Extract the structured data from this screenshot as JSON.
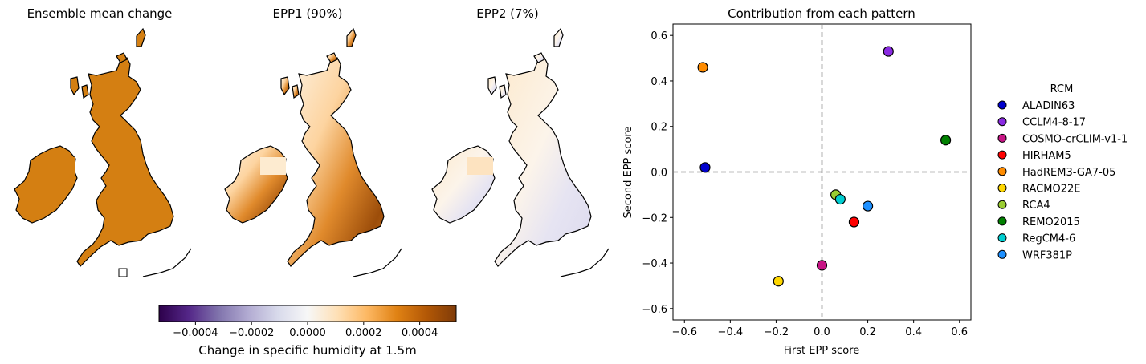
{
  "maps": {
    "titles": [
      "Ensemble mean change",
      "EPP1 (90%)",
      "EPP2 (7%)"
    ]
  },
  "colorbar": {
    "label": "Change in specific humidity at 1.5m",
    "ticks": [
      "−0.0004",
      "−0.0002",
      "0.0000",
      "0.0002",
      "0.0004"
    ],
    "colors": [
      "#2d004b",
      "#542788",
      "#8073ac",
      "#b2abd2",
      "#d8daeb",
      "#f7f7f7",
      "#fee0b6",
      "#fdb863",
      "#e08214",
      "#b35806",
      "#7f3b08"
    ]
  },
  "chart_data": {
    "type": "scatter",
    "title": "Contribution from each pattern",
    "xlabel": "First EPP score",
    "ylabel": "Second EPP score",
    "xlim": [
      -0.65,
      0.65
    ],
    "ylim": [
      -0.65,
      0.65
    ],
    "xticks": [
      -0.6,
      -0.4,
      -0.2,
      0.0,
      0.2,
      0.4,
      0.6
    ],
    "yticks": [
      -0.6,
      -0.4,
      -0.2,
      0.0,
      0.2,
      0.4,
      0.6
    ],
    "xtick_labels": [
      "−0.6",
      "−0.4",
      "−0.2",
      "0.0",
      "0.2",
      "0.4",
      "0.6"
    ],
    "ytick_labels": [
      "−0.6",
      "−0.4",
      "−0.2",
      "0.0",
      "0.2",
      "0.4",
      "0.6"
    ],
    "reference_lines": {
      "x": 0.0,
      "y": 0.0
    },
    "grid": false,
    "legend_title": "RCM",
    "legend_position": "right, outside",
    "series": [
      {
        "name": "ALADIN63",
        "x": -0.51,
        "y": 0.02,
        "color": "#0000cd"
      },
      {
        "name": "CCLM4-8-17",
        "x": 0.29,
        "y": 0.53,
        "color": "#8a2be2"
      },
      {
        "name": "COSMO-crCLIM-v1-1",
        "x": 0.0,
        "y": -0.41,
        "color": "#c71585"
      },
      {
        "name": "HIRHAM5",
        "x": 0.14,
        "y": -0.22,
        "color": "#ff0000"
      },
      {
        "name": "HadREM3-GA7-05",
        "x": -0.52,
        "y": 0.46,
        "color": "#ff8c00"
      },
      {
        "name": "RACMO22E",
        "x": -0.19,
        "y": -0.48,
        "color": "#ffd700"
      },
      {
        "name": "RCA4",
        "x": 0.06,
        "y": -0.1,
        "color": "#9acd32"
      },
      {
        "name": "REMO2015",
        "x": 0.54,
        "y": 0.14,
        "color": "#008000"
      },
      {
        "name": "RegCM4-6",
        "x": 0.08,
        "y": -0.12,
        "color": "#00ced1"
      },
      {
        "name": "WRF381P",
        "x": 0.2,
        "y": -0.15,
        "color": "#1e90ff"
      }
    ]
  }
}
